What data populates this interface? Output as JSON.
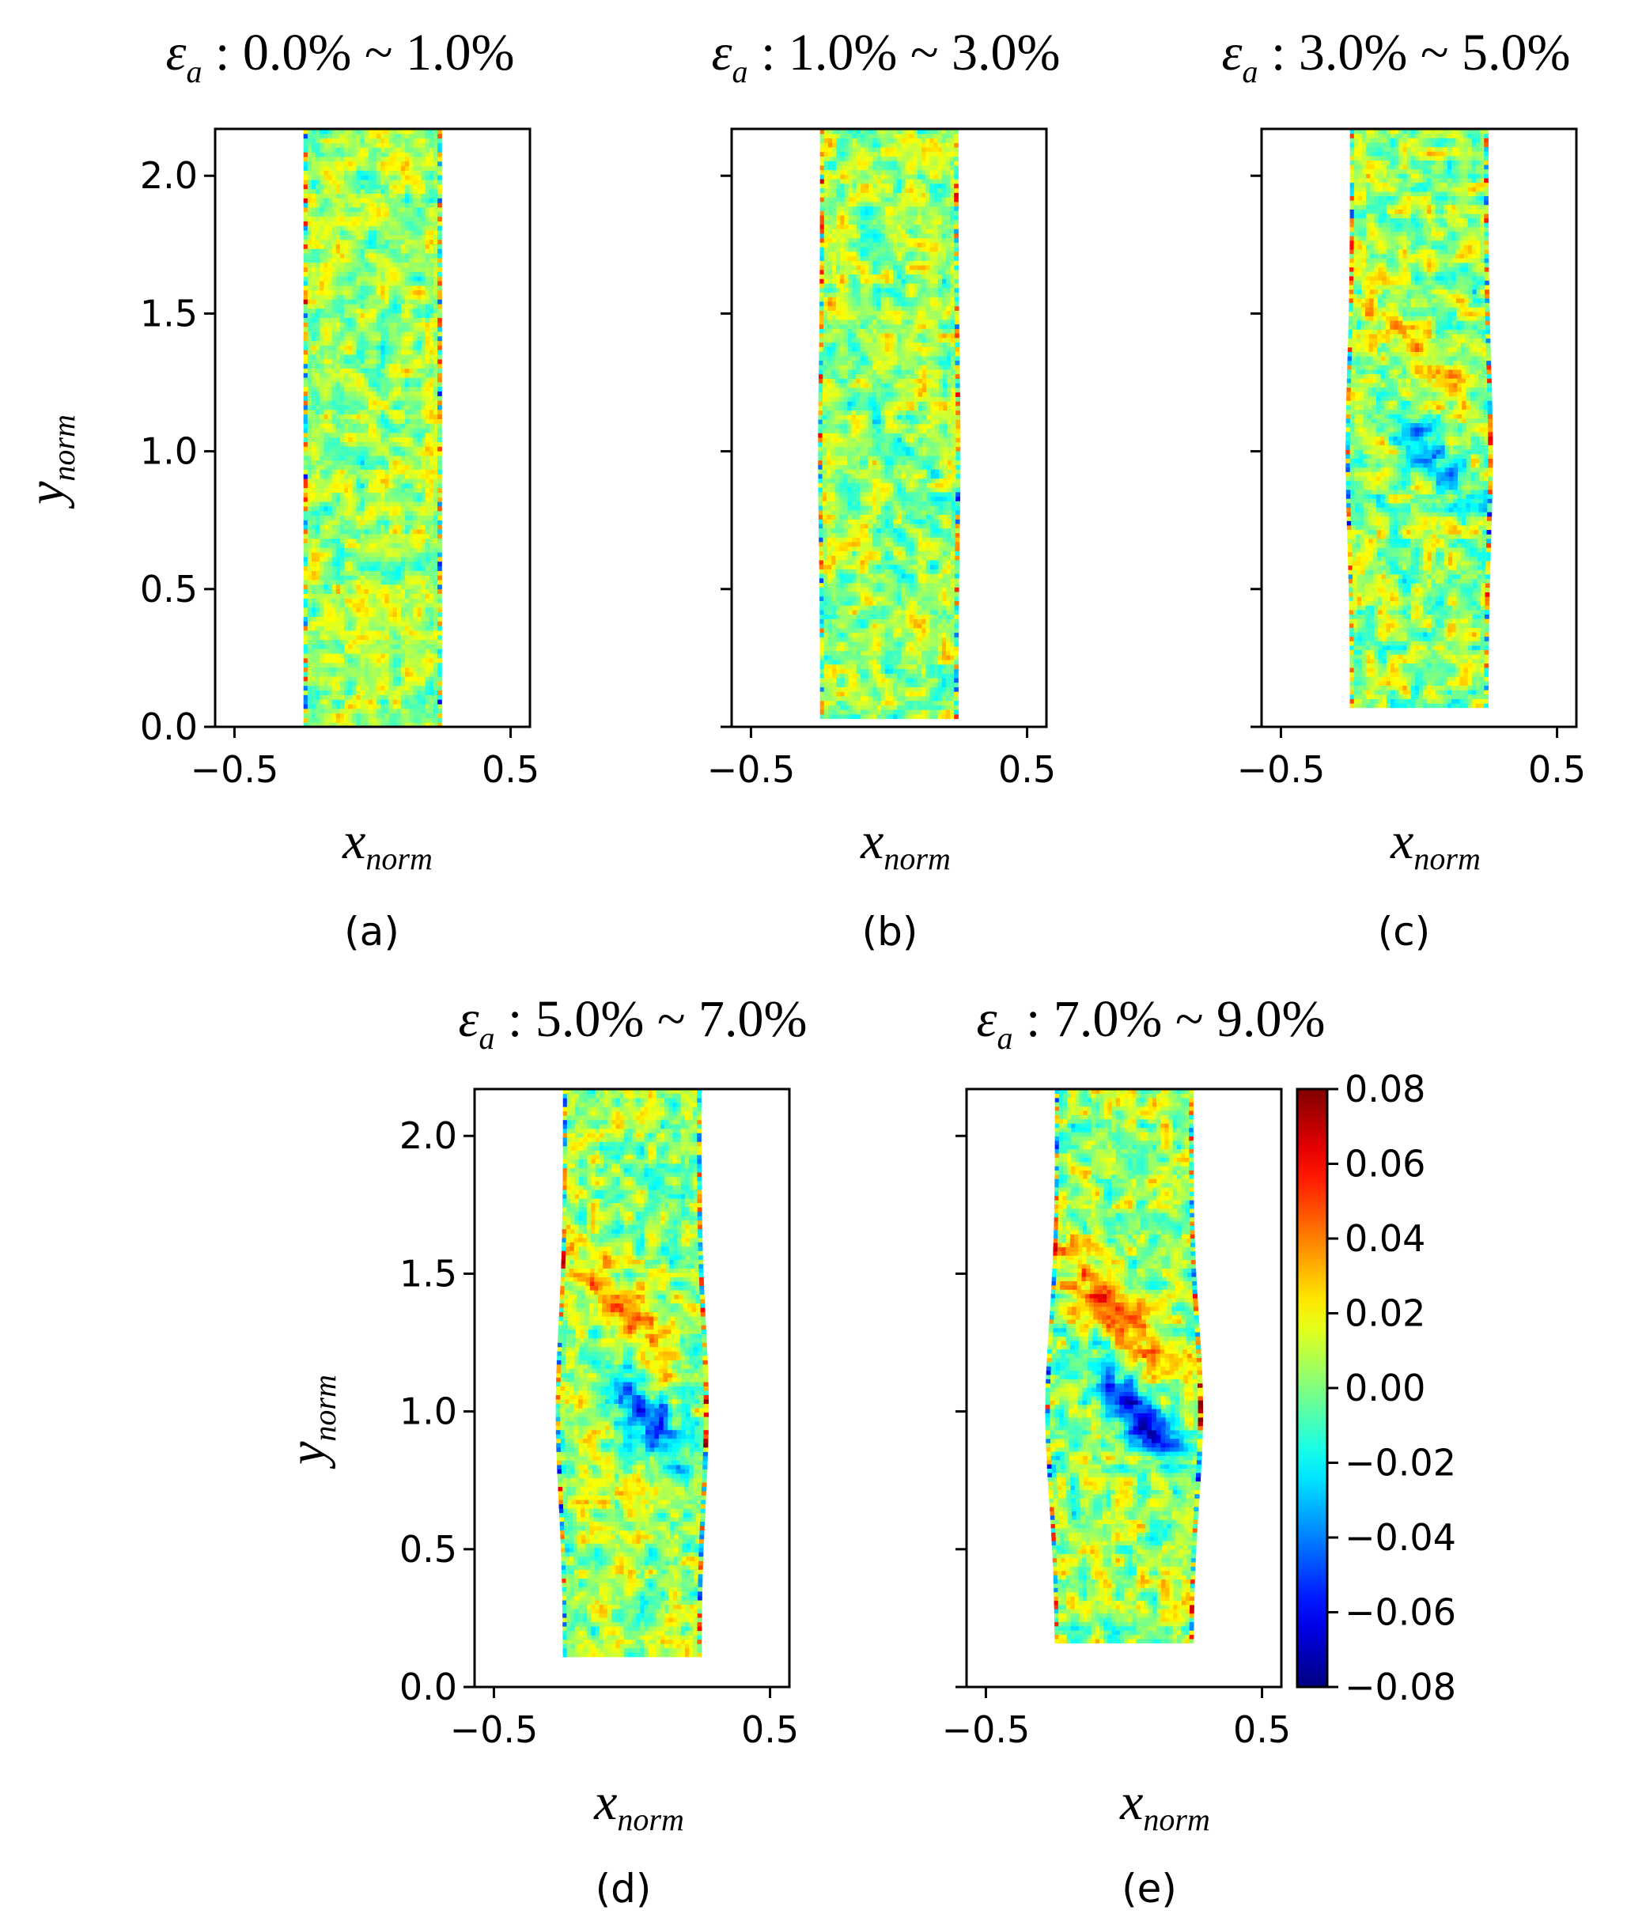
{
  "chart_data": {
    "type": "heatmap",
    "colormap": "jet",
    "colorbar": {
      "range": [
        -0.08,
        0.08
      ],
      "tick_values": [
        0.08,
        0.06,
        0.04,
        0.02,
        0.0,
        -0.02,
        -0.04,
        -0.06,
        -0.08
      ],
      "tick_labels": [
        "0.08",
        "0.06",
        "0.04",
        "0.02",
        "0.00",
        "−0.02",
        "−0.04",
        "−0.06",
        "−0.08"
      ],
      "location": "right of panel (e)"
    },
    "panels": [
      {
        "label": "(a)",
        "title_symbol": "ε",
        "title_subscript": "a",
        "title_range": " : 0.0% ~ 1.0%",
        "xlabel": "x",
        "xlabel_sub": "norm",
        "ylabel": "y",
        "ylabel_sub": "norm",
        "xlim": [
          -0.57,
          0.57
        ],
        "ylim": [
          0.0,
          2.17
        ],
        "xticks": [
          -0.5,
          0.5
        ],
        "xtick_labels": [
          "−0.5",
          "0.5"
        ],
        "yticks": [
          0.0,
          0.5,
          1.0,
          1.5,
          2.0
        ],
        "ytick_labels": [
          "0.0",
          "0.5",
          "1.0",
          "1.5",
          "2.0"
        ],
        "specimen_x": [
          -0.25,
          0.25
        ],
        "specimen_y": [
          0.0,
          2.17
        ],
        "specimen_width_at_y": {
          "y": [
            0.0,
            2.17
          ],
          "left": [
            -0.25,
            -0.25
          ],
          "right": [
            0.25,
            0.25
          ]
        },
        "band_intensity": 0.0,
        "noise_level": 0.2
      },
      {
        "label": "(b)",
        "title_symbol": "ε",
        "title_subscript": "a",
        "title_range": " : 1.0% ~ 3.0%",
        "xlabel": "x",
        "xlabel_sub": "norm",
        "ylabel": "",
        "ylabel_sub": "",
        "xlim": [
          -0.57,
          0.57
        ],
        "ylim": [
          0.0,
          2.17
        ],
        "xticks": [
          -0.5,
          0.5
        ],
        "xtick_labels": [
          "−0.5",
          "0.5"
        ],
        "yticks": [
          0.0,
          0.5,
          1.0,
          1.5,
          2.0
        ],
        "ytick_labels": [],
        "specimen_x": [
          -0.25,
          0.25
        ],
        "specimen_y": [
          0.03,
          2.17
        ],
        "band_intensity": 0.2,
        "noise_level": 0.25
      },
      {
        "label": "(c)",
        "title_symbol": "ε",
        "title_subscript": "a",
        "title_range": " : 3.0% ~ 5.0%",
        "xlabel": "x",
        "xlabel_sub": "norm",
        "ylabel": "",
        "ylabel_sub": "",
        "xlim": [
          -0.57,
          0.57
        ],
        "ylim": [
          0.0,
          2.17
        ],
        "xticks": [
          -0.5,
          0.5
        ],
        "xtick_labels": [
          "−0.5",
          "0.5"
        ],
        "yticks": [
          0.0,
          0.5,
          1.0,
          1.5,
          2.0
        ],
        "ytick_labels": [],
        "specimen_x": [
          -0.25,
          0.25
        ],
        "specimen_y": [
          0.07,
          2.17
        ],
        "band_intensity": 0.45,
        "noise_level": 0.3
      },
      {
        "label": "(d)",
        "title_symbol": "ε",
        "title_subscript": "a",
        "title_range": " : 5.0% ~ 7.0%",
        "xlabel": "x",
        "xlabel_sub": "norm",
        "ylabel": "y",
        "ylabel_sub": "norm",
        "xlim": [
          -0.57,
          0.57
        ],
        "ylim": [
          0.0,
          2.17
        ],
        "xticks": [
          -0.5,
          0.5
        ],
        "xtick_labels": [
          "−0.5",
          "0.5"
        ],
        "yticks": [
          0.0,
          0.5,
          1.0,
          1.5,
          2.0
        ],
        "ytick_labels": [
          "0.0",
          "0.5",
          "1.0",
          "1.5",
          "2.0"
        ],
        "specimen_x": [
          -0.25,
          0.25
        ],
        "specimen_y": [
          0.11,
          2.17
        ],
        "band_intensity": 0.75,
        "noise_level": 0.3
      },
      {
        "label": "(e)",
        "title_symbol": "ε",
        "title_subscript": "a",
        "title_range": " : 7.0% ~ 9.0%",
        "xlabel": "x",
        "xlabel_sub": "norm",
        "ylabel": "",
        "ylabel_sub": "",
        "xlim": [
          -0.57,
          0.57
        ],
        "ylim": [
          0.0,
          2.17
        ],
        "xticks": [
          -0.5,
          0.5
        ],
        "xtick_labels": [
          "−0.5",
          "0.5"
        ],
        "yticks": [
          0.0,
          0.5,
          1.0,
          1.5,
          2.0
        ],
        "ytick_labels": [],
        "specimen_x": [
          -0.25,
          0.25
        ],
        "specimen_y": [
          0.16,
          2.17
        ],
        "band_intensity": 1.0,
        "noise_level": 0.3
      }
    ]
  }
}
